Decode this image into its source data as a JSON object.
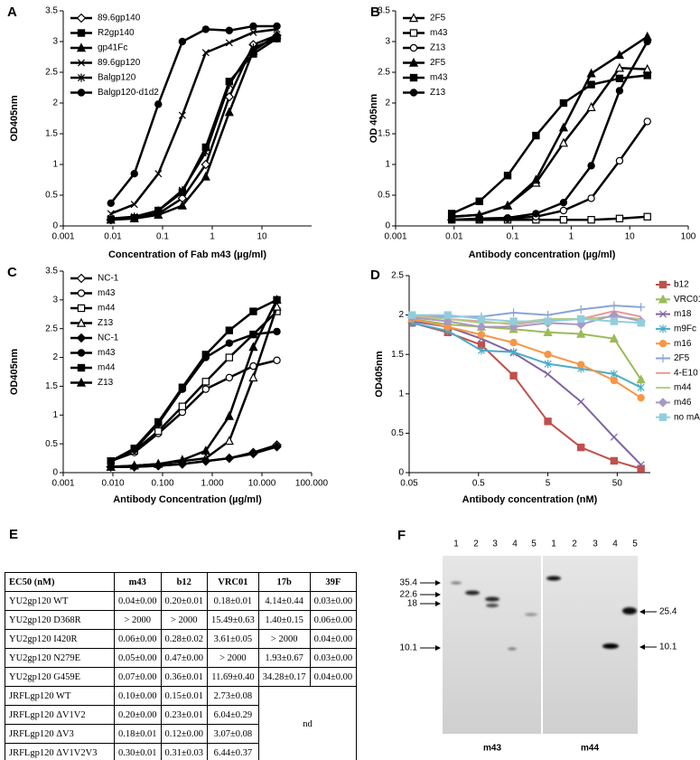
{
  "chart_data": [
    {
      "type": "line",
      "label": "A",
      "x_label": "Concentration of Fab m43 (µg/ml)",
      "y_label": "OD405nm",
      "xscale": "log",
      "xlim": [
        0.001,
        100
      ],
      "xticks": [
        0.001,
        0.01,
        0.1,
        1,
        10
      ],
      "ylim": [
        0,
        3.5
      ],
      "yticks": [
        0,
        0.5,
        1,
        1.5,
        2,
        2.5,
        3,
        3.5
      ],
      "grid": false,
      "legend": "upper left",
      "x": [
        0.0091,
        0.027,
        0.082,
        0.25,
        0.74,
        2.2,
        6.7,
        20
      ],
      "series": [
        {
          "name": "89.6gp140",
          "color": "#000000",
          "marker": "diamond",
          "filled": false,
          "values": [
            0.1,
            0.13,
            0.2,
            0.45,
            1.0,
            2.1,
            2.95,
            3.1
          ]
        },
        {
          "name": "R2gp140",
          "color": "#000000",
          "marker": "square",
          "filled": true,
          "values": [
            0.1,
            0.13,
            0.25,
            0.55,
            1.28,
            2.35,
            2.8,
            3.05
          ]
        },
        {
          "name": "gp41Fc",
          "color": "#000000",
          "marker": "triangle",
          "filled": true,
          "values": [
            0.1,
            0.12,
            0.18,
            0.33,
            0.8,
            1.85,
            2.85,
            3.1
          ]
        },
        {
          "name": "89.6gp120",
          "color": "#000000",
          "marker": "x",
          "filled": false,
          "values": [
            0.2,
            0.35,
            0.85,
            1.8,
            2.82,
            2.98,
            3.15,
            3.2
          ]
        },
        {
          "name": "Balgp120",
          "color": "#000000",
          "marker": "asterisk",
          "filled": false,
          "values": [
            0.12,
            0.15,
            0.25,
            0.58,
            1.2,
            2.3,
            2.9,
            3.05
          ]
        },
        {
          "name": "Balgp120-d1d2",
          "color": "#000000",
          "marker": "circle",
          "filled": true,
          "values": [
            0.37,
            0.85,
            1.98,
            3.0,
            3.2,
            3.18,
            3.25,
            3.25
          ]
        }
      ]
    },
    {
      "type": "line",
      "label": "B",
      "x_label": "Antibody concentration (µg/ml)",
      "y_label": "OD 405nm",
      "xscale": "log",
      "xlim": [
        0.001,
        100
      ],
      "xticks": [
        0.001,
        0.01,
        0.1,
        1,
        10,
        100
      ],
      "ylim": [
        0,
        3.5
      ],
      "yticks": [
        0,
        0.5,
        1,
        1.5,
        2,
        2.5,
        3,
        3.5
      ],
      "grid": false,
      "legend": "upper left",
      "x": [
        0.0091,
        0.027,
        0.082,
        0.25,
        0.74,
        2.2,
        6.7,
        20
      ],
      "series": [
        {
          "name": "2F5",
          "color": "#000000",
          "marker": "triangle",
          "filled": false,
          "values": [
            0.15,
            0.18,
            0.33,
            0.7,
            1.35,
            1.93,
            2.57,
            2.55
          ]
        },
        {
          "name": "m43",
          "color": "#000000",
          "marker": "square",
          "filled": false,
          "values": [
            0.1,
            0.1,
            0.1,
            0.1,
            0.1,
            0.1,
            0.12,
            0.15
          ]
        },
        {
          "name": "Z13",
          "color": "#000000",
          "marker": "circle",
          "filled": false,
          "values": [
            0.1,
            0.1,
            0.12,
            0.15,
            0.25,
            0.45,
            1.06,
            1.7
          ]
        },
        {
          "name": "2F5",
          "color": "#000000",
          "marker": "triangle",
          "filled": true,
          "values": [
            0.15,
            0.18,
            0.33,
            0.75,
            1.6,
            2.48,
            2.78,
            3.08
          ]
        },
        {
          "name": "m43",
          "color": "#000000",
          "marker": "square",
          "filled": true,
          "values": [
            0.2,
            0.4,
            0.82,
            1.47,
            2.0,
            2.3,
            2.4,
            2.45
          ]
        },
        {
          "name": "Z13",
          "color": "#000000",
          "marker": "circle",
          "filled": true,
          "values": [
            0.1,
            0.12,
            0.13,
            0.2,
            0.38,
            0.98,
            2.2,
            3.0
          ]
        }
      ]
    },
    {
      "type": "line",
      "label": "C",
      "x_label": "Antibody Concentration (µg/ml)",
      "y_label": "OD405nm",
      "xscale": "log",
      "xlim": [
        0.001,
        100
      ],
      "xticks": [
        0.001,
        {
          "value": 0.01,
          "label": "0.010"
        },
        {
          "value": 0.1,
          "label": "0.100"
        },
        {
          "value": 1,
          "label": "1.000"
        },
        {
          "value": 10,
          "label": "10.000"
        },
        {
          "value": 100,
          "label": "100.000"
        }
      ],
      "ylim": [
        0,
        3.5
      ],
      "yticks": [
        0,
        0.5,
        1,
        1.5,
        2,
        2.5,
        3,
        3.5
      ],
      "grid": false,
      "legend": "upper left",
      "x": [
        0.0091,
        0.027,
        0.082,
        0.25,
        0.74,
        2.2,
        6.7,
        20
      ],
      "series": [
        {
          "name": "NC-1",
          "color": "#000000",
          "marker": "diamond",
          "filled": false,
          "values": [
            0.1,
            0.1,
            0.12,
            0.15,
            0.2,
            0.25,
            0.35,
            0.48
          ]
        },
        {
          "name": "m43",
          "color": "#000000",
          "marker": "circle",
          "filled": false,
          "values": [
            0.2,
            0.35,
            0.68,
            1.05,
            1.45,
            1.65,
            1.85,
            1.95
          ]
        },
        {
          "name": "m44",
          "color": "#000000",
          "marker": "square",
          "filled": false,
          "values": [
            0.2,
            0.38,
            0.72,
            1.15,
            1.58,
            2.0,
            2.4,
            2.8
          ]
        },
        {
          "name": "Z13",
          "color": "#000000",
          "marker": "triangle",
          "filled": false,
          "values": [
            0.1,
            0.12,
            0.15,
            0.2,
            0.25,
            0.55,
            1.65,
            2.88
          ]
        },
        {
          "name": "NC-1",
          "color": "#000000",
          "marker": "diamond",
          "filled": true,
          "values": [
            0.1,
            0.1,
            0.12,
            0.15,
            0.2,
            0.25,
            0.33,
            0.45
          ]
        },
        {
          "name": "m43",
          "color": "#000000",
          "marker": "circle",
          "filled": true,
          "values": [
            0.2,
            0.4,
            0.85,
            1.45,
            2.0,
            2.25,
            2.4,
            2.45
          ]
        },
        {
          "name": "m44",
          "color": "#000000",
          "marker": "square",
          "filled": true,
          "values": [
            0.2,
            0.42,
            0.88,
            1.48,
            2.05,
            2.47,
            2.8,
            3.0
          ]
        },
        {
          "name": "Z13",
          "color": "#000000",
          "marker": "triangle",
          "filled": true,
          "values": [
            0.1,
            0.12,
            0.15,
            0.22,
            0.38,
            0.98,
            2.18,
            3.0
          ]
        }
      ]
    },
    {
      "type": "line",
      "label": "D",
      "x_label": "Antibody concentration (nM)",
      "y_label": "OD405nm",
      "xscale": "log",
      "xlim": [
        0.05,
        150
      ],
      "xticks": [
        0.05,
        0.5,
        5,
        50
      ],
      "ylim": [
        0,
        2.5
      ],
      "yticks": [
        0,
        0.5,
        1,
        1.5,
        2,
        2.5
      ],
      "grid": false,
      "legend": "right",
      "x": [
        0.055,
        0.18,
        0.55,
        1.6,
        5,
        15,
        45,
        110
      ],
      "series": [
        {
          "name": "b12",
          "color": "#c0504d",
          "marker": "square",
          "filled": true,
          "values": [
            1.9,
            1.78,
            1.62,
            1.23,
            0.65,
            0.32,
            0.15,
            0.05
          ]
        },
        {
          "name": "VRC01",
          "color": "#9bbb59",
          "marker": "triangle",
          "filled": true,
          "values": [
            1.95,
            1.88,
            1.85,
            1.82,
            1.78,
            1.76,
            1.7,
            1.18
          ]
        },
        {
          "name": "m18",
          "color": "#8064a2",
          "marker": "x",
          "filled": false,
          "values": [
            1.92,
            1.85,
            1.7,
            1.52,
            1.25,
            0.9,
            0.45,
            0.1
          ]
        },
        {
          "name": "m9Fc",
          "color": "#4bacc6",
          "marker": "asterisk",
          "filled": false,
          "values": [
            1.9,
            1.8,
            1.55,
            1.53,
            1.38,
            1.32,
            1.25,
            1.08
          ]
        },
        {
          "name": "m16",
          "color": "#f79646",
          "marker": "circle",
          "filled": true,
          "values": [
            1.95,
            1.85,
            1.75,
            1.65,
            1.5,
            1.37,
            1.17,
            0.95
          ]
        },
        {
          "name": "2F5",
          "color": "#8aa4d6",
          "marker": "plus",
          "filled": false,
          "values": [
            1.98,
            1.98,
            1.98,
            2.03,
            2.0,
            2.07,
            2.12,
            2.1
          ]
        },
        {
          "name": "4-E10",
          "color": "#e59a99",
          "marker": "none",
          "filled": false,
          "values": [
            2.0,
            1.95,
            1.92,
            1.88,
            1.93,
            1.95,
            2.05,
            1.98
          ]
        },
        {
          "name": "m44",
          "color": "#b3cc82",
          "marker": "none",
          "filled": false,
          "values": [
            1.98,
            1.95,
            1.9,
            1.9,
            1.95,
            1.95,
            1.98,
            1.95
          ]
        },
        {
          "name": "m46",
          "color": "#a899c4",
          "marker": "diamond",
          "filled": true,
          "values": [
            1.97,
            1.92,
            1.85,
            1.85,
            1.9,
            1.88,
            2.0,
            1.92
          ]
        },
        {
          "name": "no mAb",
          "color": "#93cddd",
          "marker": "square",
          "filled": true,
          "values": [
            2.0,
            2.0,
            1.95,
            1.92,
            1.92,
            1.95,
            1.92,
            1.9
          ]
        }
      ]
    }
  ],
  "table": {
    "panel_label": "E",
    "header": [
      "EC50 (nM)",
      "m43",
      "b12",
      "VRC01",
      "17b",
      "39F"
    ],
    "rows": [
      [
        "YU2gp120 WT",
        "0.04±0.00",
        "0.20±0.01",
        "0.18±0.01",
        "4.14±0.44",
        "0.03±0.00"
      ],
      [
        "YU2gp120 D368R",
        "> 2000",
        "> 2000",
        "15.49±0.63",
        "1.40±0.15",
        "0.06±0.00"
      ],
      [
        "YU2gp120  I420R",
        "0.06±0.00",
        "0.28±0.02",
        "3.61±0.05",
        "> 2000",
        "0.04±0.00"
      ],
      [
        "YU2gp120 N279E",
        "0.05±0.00",
        "0.47±0.00",
        "> 2000",
        "1.93±0.67",
        "0.03±0.00"
      ],
      [
        "YU2gp120 G459E",
        "0.07±0.00",
        "0.36±0.01",
        "11.69±0.40",
        "34.28±0.17",
        "0.04±0.00"
      ],
      [
        "JRFLgp120 WT",
        "0.10±0.00",
        "0.15±0.01",
        "2.73±0.08"
      ],
      [
        "JRFLgp120 ΔV1V2",
        "0.20±0.00",
        "0.23±0.01",
        "6.04±0.29"
      ],
      [
        "JRFLgp120 ΔV3",
        "0.18±0.01",
        "0.12±0.00",
        "3.07±0.08"
      ],
      [
        "JRFLgp120 ΔV1V2V3",
        "0.30±0.01",
        "0.31±0.03",
        "6.44±0.37"
      ]
    ],
    "merged_note": "nd"
  },
  "blot": {
    "panel_label": "F",
    "lane_labels": [
      "1",
      "2",
      "3",
      "4",
      "5"
    ],
    "markers_left": [
      "35.4",
      "22.6",
      "18",
      "10.1"
    ],
    "markers_right": [
      "25.4",
      "10.1"
    ],
    "gel_labels": [
      "m43",
      "m44"
    ]
  }
}
